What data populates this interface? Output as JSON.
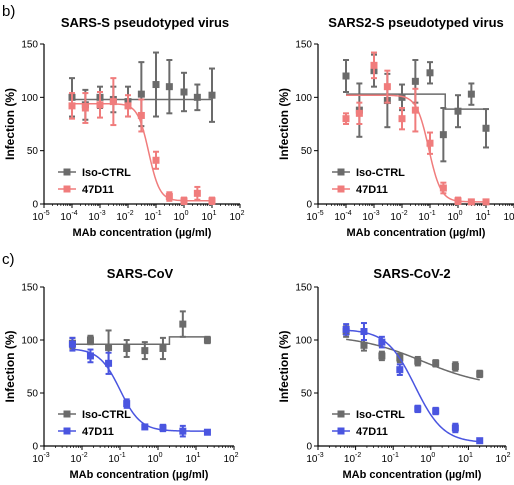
{
  "panel_labels": [
    "b)",
    "c)"
  ],
  "colors": {
    "iso": "#6b6b6b",
    "mab_red": "#f07c7c",
    "mab_blue": "#4a55e0",
    "axis": "#000000"
  },
  "chart_data": [
    {
      "type": "scatter",
      "title": "SARS-S pseudotyped virus",
      "xlabel": "MAb concentration (µg/ml)",
      "ylabel": "Infection (%)",
      "xscale": "log",
      "xlim": [
        1e-05,
        100
      ],
      "ylim": [
        0,
        150
      ],
      "yticks": [
        0,
        50,
        100,
        150
      ],
      "xtick_exponents": [
        -5,
        -4,
        -3,
        -2,
        -1,
        0,
        1,
        2
      ],
      "legend": "bottom-left",
      "series": [
        {
          "name": "Iso-CTRL",
          "color": "#6b6b6b",
          "marker": "square",
          "x": [
            0.0001,
            0.0003,
            0.001,
            0.003,
            0.01,
            0.03,
            0.1,
            0.3,
            1,
            3,
            10
          ],
          "y": [
            100,
            93,
            100,
            98,
            96,
            103,
            112,
            110,
            105,
            100,
            102
          ],
          "err": [
            18,
            14,
            10,
            12,
            14,
            30,
            30,
            25,
            18,
            12,
            25
          ],
          "fit": {
            "type": "flat",
            "y": 98
          }
        },
        {
          "name": "47D11",
          "color": "#f07c7c",
          "marker": "square",
          "x": [
            0.0001,
            0.0003,
            0.001,
            0.003,
            0.01,
            0.03,
            0.1,
            0.3,
            1,
            3,
            10
          ],
          "y": [
            92,
            90,
            93,
            96,
            92,
            83,
            41,
            7,
            3,
            10,
            3
          ],
          "err": [
            12,
            14,
            12,
            22,
            10,
            15,
            8,
            4,
            3,
            6,
            3
          ],
          "fit": {
            "type": "4pl",
            "top": 94,
            "bottom": 3,
            "ic50": 0.055,
            "hill": 2.2
          }
        }
      ]
    },
    {
      "type": "scatter",
      "title": "SARS2-S pseudotyped virus",
      "xlabel": "MAb concentration (µg/ml)",
      "ylabel": "Infection (%)",
      "xscale": "log",
      "xlim": [
        1e-05,
        100
      ],
      "ylim": [
        0,
        150
      ],
      "yticks": [
        0,
        50,
        100,
        150
      ],
      "xtick_exponents": [
        -5,
        -4,
        -3,
        -2,
        -1,
        0,
        1,
        2
      ],
      "legend": "bottom-left",
      "series": [
        {
          "name": "Iso-CTRL",
          "color": "#6b6b6b",
          "marker": "square",
          "x": [
            0.0001,
            0.0003,
            0.001,
            0.003,
            0.01,
            0.03,
            0.1,
            0.3,
            1,
            3,
            10
          ],
          "y": [
            120,
            88,
            125,
            97,
            100,
            115,
            123,
            65,
            87,
            103,
            71
          ],
          "err": [
            15,
            25,
            15,
            25,
            12,
            20,
            10,
            25,
            15,
            10,
            18
          ],
          "fit": {
            "type": "step",
            "y1": 103,
            "y2": 89,
            "x_step": 0.35
          }
        },
        {
          "name": "47D11",
          "color": "#f07c7c",
          "marker": "square",
          "x": [
            0.0001,
            0.0003,
            0.001,
            0.003,
            0.01,
            0.03,
            0.1,
            0.3,
            1,
            3,
            10
          ],
          "y": [
            80,
            85,
            130,
            110,
            80,
            88,
            57,
            15,
            3,
            2,
            2
          ],
          "err": [
            5,
            10,
            12,
            15,
            10,
            20,
            10,
            5,
            3,
            2,
            2
          ],
          "fit": {
            "type": "4pl",
            "top": 102,
            "bottom": 2,
            "ic50": 0.09,
            "hill": 2.0
          }
        }
      ]
    },
    {
      "type": "scatter",
      "title": "SARS-CoV",
      "xlabel": "MAb concentration (µg/ml)",
      "ylabel": "Infection (%)",
      "xscale": "log",
      "xlim": [
        0.001,
        100
      ],
      "ylim": [
        0,
        150
      ],
      "yticks": [
        0,
        50,
        100,
        150
      ],
      "xtick_exponents": [
        -3,
        -2,
        -1,
        0,
        1,
        2
      ],
      "legend": "bottom-left",
      "series": [
        {
          "name": "Iso-CTRL",
          "color": "#6b6b6b",
          "marker": "square",
          "x": [
            0.0056,
            0.0167,
            0.05,
            0.15,
            0.45,
            1.35,
            4.5,
            20
          ],
          "y": [
            97,
            100,
            93,
            92,
            90,
            92,
            115,
            100
          ],
          "err": [
            5,
            4,
            16,
            8,
            8,
            10,
            12,
            3
          ],
          "fit": {
            "type": "step",
            "y1": 96,
            "y2": 103,
            "x_step": 2
          }
        },
        {
          "name": "47D11",
          "color": "#4a55e0",
          "marker": "square",
          "x": [
            0.0056,
            0.0167,
            0.05,
            0.15,
            0.45,
            1.35,
            4.5,
            20
          ],
          "y": [
            96,
            85,
            78,
            40,
            18,
            17,
            14,
            13
          ],
          "err": [
            6,
            6,
            10,
            4,
            2,
            3,
            5,
            2
          ],
          "fit": {
            "type": "4pl",
            "top": 92,
            "bottom": 14,
            "ic50": 0.1,
            "hill": 1.6
          }
        }
      ]
    },
    {
      "type": "scatter",
      "title": "SARS-CoV-2",
      "xlabel": "MAb concentration (µg/ml)",
      "ylabel": "Infection (%)",
      "xscale": "log",
      "xlim": [
        0.001,
        100
      ],
      "ylim": [
        0,
        150
      ],
      "yticks": [
        0,
        50,
        100,
        150
      ],
      "xtick_exponents": [
        -3,
        -2,
        -1,
        0,
        1,
        2
      ],
      "legend": "bottom-left",
      "series": [
        {
          "name": "Iso-CTRL",
          "color": "#6b6b6b",
          "marker": "square",
          "x": [
            0.0056,
            0.0167,
            0.05,
            0.15,
            0.45,
            1.35,
            4.5,
            20
          ],
          "y": [
            108,
            95,
            85,
            83,
            80,
            78,
            75,
            68
          ],
          "err": [
            5,
            5,
            4,
            4,
            4,
            3,
            4,
            3
          ],
          "fit": {
            "type": "4pl",
            "top": 105,
            "bottom": 55,
            "ic50": 0.6,
            "hill": 0.5
          }
        },
        {
          "name": "47D11",
          "color": "#4a55e0",
          "marker": "square",
          "x": [
            0.0056,
            0.0167,
            0.05,
            0.15,
            0.45,
            1.35,
            4.5,
            20
          ],
          "y": [
            110,
            108,
            98,
            72,
            35,
            33,
            17,
            5
          ],
          "err": [
            5,
            8,
            5,
            5,
            3,
            3,
            4,
            2
          ],
          "fit": {
            "type": "4pl",
            "top": 110,
            "bottom": 3,
            "ic50": 0.38,
            "hill": 1.15
          }
        }
      ]
    }
  ]
}
